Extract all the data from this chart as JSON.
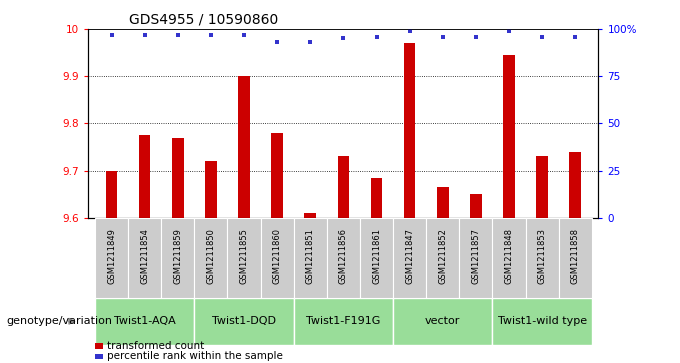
{
  "title": "GDS4955 / 10590860",
  "samples": [
    "GSM1211849",
    "GSM1211854",
    "GSM1211859",
    "GSM1211850",
    "GSM1211855",
    "GSM1211860",
    "GSM1211851",
    "GSM1211856",
    "GSM1211861",
    "GSM1211847",
    "GSM1211852",
    "GSM1211857",
    "GSM1211848",
    "GSM1211853",
    "GSM1211858"
  ],
  "bar_values": [
    9.7,
    9.775,
    9.77,
    9.72,
    9.9,
    9.78,
    9.61,
    9.73,
    9.685,
    9.97,
    9.665,
    9.65,
    9.945,
    9.73,
    9.74
  ],
  "percentile_values": [
    97,
    97,
    97,
    97,
    97,
    93,
    93,
    95,
    96,
    99,
    96,
    96,
    99,
    96,
    96
  ],
  "groups": [
    {
      "label": "Twist1-AQA",
      "start": 0,
      "end": 2
    },
    {
      "label": "Twist1-DQD",
      "start": 3,
      "end": 5
    },
    {
      "label": "Twist1-F191G",
      "start": 6,
      "end": 8
    },
    {
      "label": "vector",
      "start": 9,
      "end": 11
    },
    {
      "label": "Twist1-wild type",
      "start": 12,
      "end": 14
    }
  ],
  "ylim_left": [
    9.6,
    10.0
  ],
  "ylim_right": [
    0,
    100
  ],
  "bar_color": "#cc0000",
  "percentile_color": "#3333cc",
  "sample_bg_color": "#cccccc",
  "group_bg_color": "#99dd99",
  "xlabel_group": "genotype/variation",
  "legend_bar": "transformed count",
  "legend_pct": "percentile rank within the sample",
  "title_fontsize": 10,
  "tick_fontsize": 7.5,
  "sample_fontsize": 6,
  "group_fontsize": 8,
  "legend_fontsize": 7.5
}
